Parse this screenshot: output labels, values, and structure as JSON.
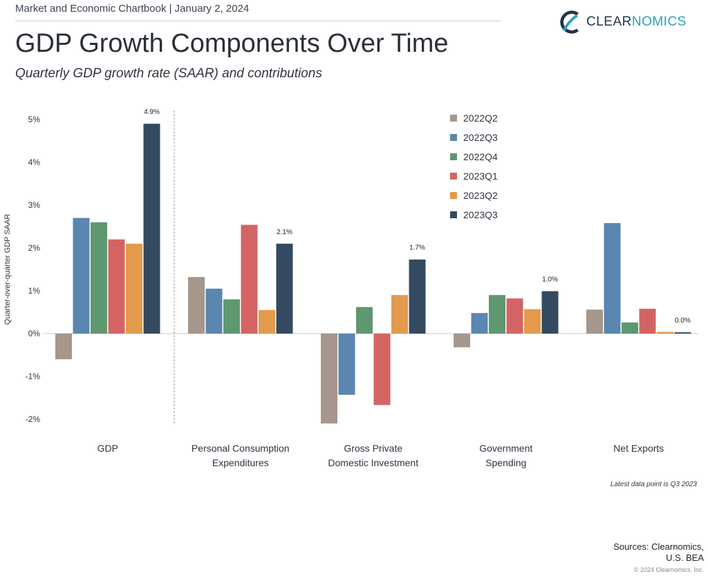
{
  "header": {
    "chartbook": "Market and Economic Chartbook | January 2, 2024",
    "brand_part1": "CLEAR",
    "brand_part2": "NOMICS",
    "brand_color_dark": "#24354a",
    "brand_color_accent": "#2aa2b8",
    "logo_icon": "clearnomics-logo-icon"
  },
  "title": "GDP Growth Components Over Time",
  "subtitle": "Quarterly GDP growth rate (SAAR) and contributions",
  "chart_data": {
    "type": "bar",
    "ylabel": "Quarter-over-quarter GDP SAAR",
    "ylim": [
      -2.3,
      5.2
    ],
    "yticks": [
      -2,
      -1,
      0,
      1,
      2,
      3,
      4,
      5
    ],
    "ytick_labels": [
      "-2%",
      "-1%",
      "0%",
      "1%",
      "2%",
      "3%",
      "4%",
      "5%"
    ],
    "categories": [
      "GDP",
      "Personal Consumption Expenditures",
      "Gross Private Domestic Investment",
      "Government Spending",
      "Net Exports"
    ],
    "category_labels": [
      [
        "GDP"
      ],
      [
        "Personal Consumption",
        "Expenditures"
      ],
      [
        "Gross Private",
        "Domestic Investment"
      ],
      [
        "Government",
        "Spending"
      ],
      [
        "Net Exports"
      ]
    ],
    "series": [
      {
        "name": "2022Q2",
        "color": "#a6968b",
        "values": [
          -0.6,
          1.32,
          -2.1,
          -0.32,
          0.56
        ]
      },
      {
        "name": "2022Q3",
        "color": "#5a86b0",
        "values": [
          2.7,
          1.05,
          -1.43,
          0.48,
          2.58
        ]
      },
      {
        "name": "2022Q4",
        "color": "#5e9870",
        "values": [
          2.6,
          0.8,
          0.62,
          0.9,
          0.26
        ]
      },
      {
        "name": "2023Q1",
        "color": "#d46464",
        "values": [
          2.2,
          2.54,
          -1.67,
          0.82,
          0.58
        ]
      },
      {
        "name": "2023Q2",
        "color": "#e39a4c",
        "values": [
          2.1,
          0.55,
          0.9,
          0.57,
          0.04
        ]
      },
      {
        "name": "2023Q3",
        "color": "#344a60",
        "values": [
          4.9,
          2.1,
          1.73,
          0.99,
          0.03
        ]
      }
    ],
    "data_labels": [
      "4.9%",
      "2.1%",
      "1.7%",
      "1.0%",
      "0.0%"
    ],
    "legend_position": "top-right",
    "grid": false,
    "divider_after_category": "GDP"
  },
  "footer": {
    "note": "Latest data point is Q3 2023",
    "sources_line1": "Sources: Clearnomics,",
    "sources_line2": "U.S. BEA",
    "copyright": "© 2024 Clearnomics, Inc."
  }
}
